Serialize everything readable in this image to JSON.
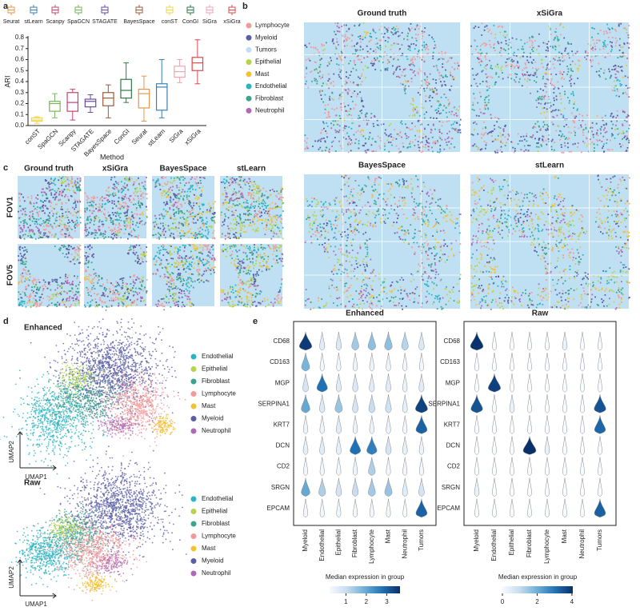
{
  "panel_labels": [
    "a",
    "b",
    "c",
    "d",
    "e"
  ],
  "chart_data": [
    {
      "type": "box",
      "ylabel": "ARI",
      "xlabel": "Method",
      "legend": [
        {
          "name": "Seurat",
          "color": "#e8964a"
        },
        {
          "name": "stLearn",
          "color": "#3d7fb5"
        },
        {
          "name": "Scanpy",
          "color": "#c7446b"
        },
        {
          "name": "SpaGCN",
          "color": "#77b65a"
        },
        {
          "name": "STAGATE",
          "color": "#6a4c9c"
        },
        {
          "name": "BayesSpace",
          "color": "#9c5b3a"
        },
        {
          "name": "conST",
          "color": "#f2d64b"
        },
        {
          "name": "ConGI",
          "color": "#2f7a4a"
        },
        {
          "name": "SiGra",
          "color": "#f2a5b0"
        },
        {
          "name": "xSiGra",
          "color": "#e3474a"
        }
      ],
      "categories": [
        "conST",
        "SpaGCN",
        "Scanpy",
        "STAGATE",
        "BayesSpace",
        "ConGI",
        "Seurat",
        "stLearn",
        "SiGra",
        "xSiGra"
      ],
      "boxes": [
        {
          "min": 0.02,
          "q1": 0.04,
          "median": 0.05,
          "q3": 0.07,
          "max": 0.08,
          "color": "#f2d64b"
        },
        {
          "min": 0.07,
          "q1": 0.13,
          "median": 0.2,
          "q3": 0.22,
          "max": 0.29,
          "color": "#77b65a"
        },
        {
          "min": 0.05,
          "q1": 0.13,
          "median": 0.21,
          "q3": 0.3,
          "max": 0.33,
          "color": "#c7446b"
        },
        {
          "min": 0.12,
          "q1": 0.17,
          "median": 0.22,
          "q3": 0.24,
          "max": 0.28,
          "color": "#6a4c9c"
        },
        {
          "min": 0.07,
          "q1": 0.18,
          "median": 0.25,
          "q3": 0.3,
          "max": 0.37,
          "color": "#9c5b3a"
        },
        {
          "min": 0.21,
          "q1": 0.25,
          "median": 0.32,
          "q3": 0.42,
          "max": 0.57,
          "color": "#2f7a4a"
        },
        {
          "min": 0.04,
          "q1": 0.16,
          "median": 0.29,
          "q3": 0.33,
          "max": 0.45,
          "color": "#e8964a"
        },
        {
          "min": 0.07,
          "q1": 0.14,
          "median": 0.35,
          "q3": 0.38,
          "max": 0.6,
          "color": "#3d7fb5"
        },
        {
          "min": 0.39,
          "q1": 0.44,
          "median": 0.49,
          "q3": 0.54,
          "max": 0.6,
          "color": "#f2a5b0"
        },
        {
          "min": 0.38,
          "q1": 0.5,
          "median": 0.57,
          "q3": 0.62,
          "max": 0.78,
          "color": "#e3474a"
        }
      ],
      "ylim": [
        0,
        0.8
      ],
      "yticks": [
        {
          "value": 0,
          "label": "0.0"
        },
        0.1,
        0.2,
        0.3,
        0.4,
        0.5,
        0.6,
        0.7,
        0.8
      ]
    },
    {
      "type": "violin",
      "title": "Enhanced",
      "xlabel": "Median expression in group",
      "genes": [
        "CD68",
        "CD163",
        "MGP",
        "SERPINA1",
        "KRT7",
        "DCN",
        "CD2",
        "SRGN",
        "EPCAM"
      ],
      "groups": [
        "Myeloid",
        "Endothelial",
        "Epithelial",
        "Fibroblast",
        "Lymphocyte",
        "Mast",
        "Neutrophil",
        "Tumors"
      ],
      "values": [
        [
          3.5,
          0.6,
          0.7,
          1.4,
          1.6,
          1.6,
          1.2,
          0.7
        ],
        [
          1.8,
          0.3,
          0.3,
          0.4,
          0.4,
          0.4,
          0.3,
          0.3
        ],
        [
          0.8,
          2.8,
          0.6,
          0.7,
          0.6,
          0.6,
          0.4,
          0.6
        ],
        [
          2.0,
          0.7,
          1.5,
          0.8,
          1.0,
          0.9,
          0.5,
          3.4
        ],
        [
          0.4,
          0.4,
          0.6,
          0.4,
          0.4,
          0.4,
          0.3,
          3.0
        ],
        [
          0.5,
          0.6,
          0.5,
          2.8,
          2.6,
          0.8,
          0.5,
          0.4
        ],
        [
          0.3,
          0.3,
          0.3,
          0.4,
          1.3,
          0.3,
          0.3,
          0.3
        ],
        [
          2.0,
          1.3,
          0.8,
          1.0,
          1.4,
          1.5,
          0.6,
          0.8
        ],
        [
          0.3,
          0.3,
          0.3,
          0.3,
          0.3,
          0.3,
          0.2,
          3.0
        ]
      ],
      "clim": [
        0.2,
        3.65
      ],
      "cticks": [
        1,
        2,
        3
      ]
    },
    {
      "type": "violin",
      "title": "Raw",
      "xlabel": "Median expression in group",
      "genes": [
        "CD68",
        "CD163",
        "MGP",
        "SERPINA1",
        "KRT7",
        "DCN",
        "CD2",
        "SRGN",
        "EPCAM"
      ],
      "groups": [
        "Myeloid",
        "Endothelial",
        "Epithelial",
        "Fibroblast",
        "Lymphocyte",
        "Mast",
        "Neutrophil",
        "Tumors"
      ],
      "values": [
        [
          4.0,
          0,
          0,
          0,
          0,
          0.3,
          0,
          0
        ],
        [
          0,
          0,
          0,
          0,
          0,
          0,
          0,
          0
        ],
        [
          0,
          3.8,
          0,
          0,
          0,
          0,
          0,
          0
        ],
        [
          3.5,
          0,
          0.3,
          0,
          0,
          0,
          0,
          3.5
        ],
        [
          0,
          0,
          0,
          0,
          0,
          0,
          0,
          3.2
        ],
        [
          0,
          0,
          0,
          4.3,
          0.3,
          0,
          0,
          0
        ],
        [
          0,
          0,
          0,
          0,
          0,
          0,
          0,
          0
        ],
        [
          0.3,
          0,
          0,
          0,
          0,
          0,
          0,
          0
        ],
        [
          0,
          0,
          0,
          0,
          0,
          0,
          0,
          3.3
        ]
      ],
      "clim": [
        0,
        4.05
      ],
      "cticks": [
        0,
        2,
        4
      ]
    }
  ],
  "spatial": {
    "b_titles": [
      "Ground truth",
      "xSiGra",
      "BayesSpace",
      "stLearn"
    ],
    "legend": [
      {
        "name": "Lymphocyte",
        "color": "#f29a9a"
      },
      {
        "name": "Myeloid",
        "color": "#5b5ea6"
      },
      {
        "name": "Tumors",
        "color": "#bfe0f2"
      },
      {
        "name": "Epithelial",
        "color": "#b7d34a"
      },
      {
        "name": "Mast",
        "color": "#f2c232"
      },
      {
        "name": "Endothelial",
        "color": "#2bb5c2"
      },
      {
        "name": "Fibroblast",
        "color": "#3aa48c"
      },
      {
        "name": "Neutrophil",
        "color": "#b06ab3"
      }
    ],
    "c_titles": [
      "Ground truth",
      "xSiGra",
      "BayesSpace",
      "stLearn"
    ],
    "c_rows": [
      "FOV1",
      "FOV5"
    ]
  },
  "umap": {
    "titles": [
      "Enhanced",
      "Raw"
    ],
    "legend": [
      {
        "name": "Endothelial",
        "color": "#2bb5c2"
      },
      {
        "name": "Epithelial",
        "color": "#b7d34a"
      },
      {
        "name": "Fibroblast",
        "color": "#3aa48c"
      },
      {
        "name": "Lymphocyte",
        "color": "#f29a9a"
      },
      {
        "name": "Mast",
        "color": "#f2c232"
      },
      {
        "name": "Myeloid",
        "color": "#5b5ea6"
      },
      {
        "name": "Neutrophil",
        "color": "#b06ab3"
      }
    ],
    "xlabel": "UMAP1",
    "ylabel": "UMAP2"
  }
}
